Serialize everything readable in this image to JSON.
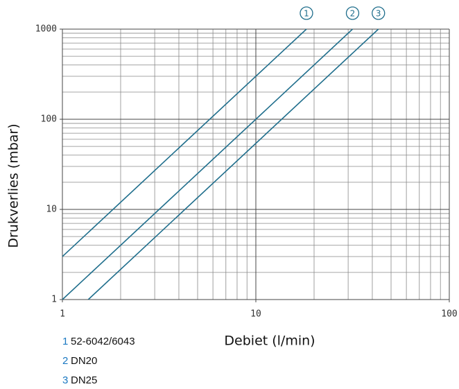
{
  "chart_data": {
    "type": "line",
    "log_x": true,
    "log_y": true,
    "grid": true,
    "xlabel": "Debiet (l/min)",
    "ylabel": "Drukverlies (mbar)",
    "xlim": [
      1,
      100
    ],
    "ylim": [
      1,
      1000
    ],
    "xticks": [
      1,
      10,
      100
    ],
    "yticks": [
      1,
      10,
      100,
      1000
    ],
    "x_minor_ticks": [
      2,
      3,
      4,
      5,
      6,
      7,
      8,
      9,
      20,
      30,
      40,
      50,
      60,
      70,
      80,
      90
    ],
    "y_minor_ticks": [
      2,
      3,
      4,
      5,
      6,
      7,
      8,
      9,
      20,
      30,
      40,
      50,
      60,
      70,
      80,
      90,
      200,
      300,
      400,
      500,
      600,
      700,
      800,
      900
    ],
    "series": [
      {
        "id": "1",
        "name": "52-6042/6043",
        "color": "#1f6e8c",
        "x": [
          1,
          18.26
        ],
        "values": [
          3,
          1000
        ]
      },
      {
        "id": "2",
        "name": "DN20",
        "color": "#1f6e8c",
        "x": [
          1,
          31.62
        ],
        "values": [
          1,
          1000
        ]
      },
      {
        "id": "3",
        "name": "DN25",
        "color": "#1f6e8c",
        "x": [
          1.36,
          43
        ],
        "values": [
          1,
          1000
        ]
      }
    ]
  }
}
